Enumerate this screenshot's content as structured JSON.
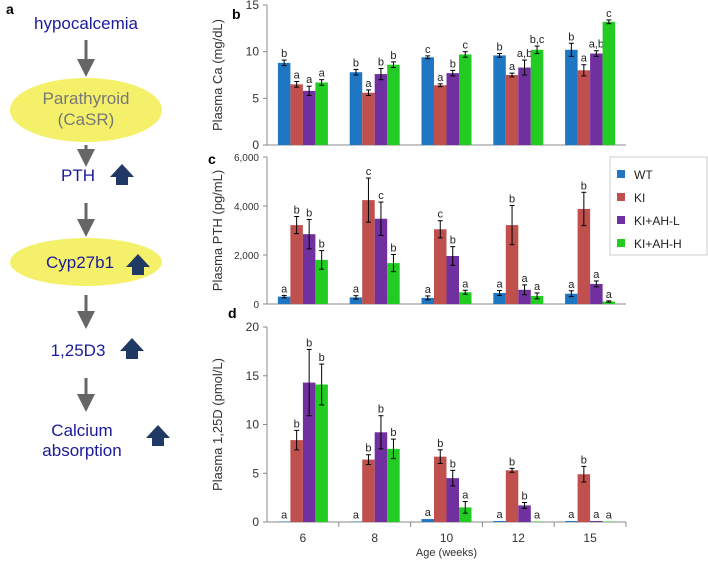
{
  "panel_labels": {
    "a": "a",
    "b": "b",
    "c": "c",
    "d": "d"
  },
  "diagram": {
    "nodes": [
      "hypocalcemia",
      "Parathyroid",
      "(CaSR)",
      "PTH",
      "Cyp27b1",
      "1,25D3",
      "Calcium",
      "absorption"
    ],
    "text_color": "#1a1a9c",
    "ellipse_color": "#f5f06a",
    "up_arrow_color": "#1f3864",
    "arrow_color": "#666666"
  },
  "legend": [
    "WT",
    "KI",
    "KI+AH-L",
    "KI+AH-H"
  ],
  "colors": [
    "#1f77c4",
    "#c0504d",
    "#7030a0",
    "#22cc22"
  ],
  "chart_data": [
    {
      "type": "bar",
      "panel": "b",
      "ylabel": "Plasma Ca (mg/dL)",
      "ylim": [
        0,
        15
      ],
      "yticks": [
        "0",
        "5",
        "10",
        "15"
      ],
      "ytick_values": [
        0,
        5,
        10,
        15
      ],
      "categories": [
        "6",
        "8",
        "10",
        "12",
        "15"
      ],
      "series": [
        {
          "name": "WT",
          "values": [
            8.8,
            7.8,
            9.4,
            9.6,
            10.2
          ],
          "errors": [
            0.3,
            0.3,
            0.15,
            0.2,
            0.7
          ],
          "letters": [
            "b",
            "b",
            "c",
            "b",
            "b"
          ]
        },
        {
          "name": "KI",
          "values": [
            6.5,
            5.6,
            6.4,
            7.5,
            8.0
          ],
          "errors": [
            0.3,
            0.3,
            0.15,
            0.2,
            0.6
          ],
          "letters": [
            "a",
            "a",
            "a",
            "a",
            "a"
          ]
        },
        {
          "name": "KI+AH-L",
          "values": [
            5.8,
            7.6,
            7.7,
            8.3,
            9.8
          ],
          "errors": [
            0.5,
            0.6,
            0.3,
            0.8,
            0.3
          ],
          "letters": [
            "a",
            "b",
            "b",
            "a,b",
            "a,b"
          ]
        },
        {
          "name": "KI+AH-H",
          "values": [
            6.7,
            8.6,
            9.7,
            10.2,
            13.2
          ],
          "errors": [
            0.3,
            0.3,
            0.3,
            0.4,
            0.2
          ],
          "letters": [
            "a",
            "b",
            "c",
            "b,c",
            "c"
          ]
        }
      ]
    },
    {
      "type": "bar",
      "panel": "c",
      "ylabel": "Plasma  PTH (pg/mL)",
      "ylim": [
        0,
        6000
      ],
      "yticks": [
        "0",
        "2,000",
        "4,000",
        "6,000"
      ],
      "ytick_values": [
        0,
        2000,
        4000,
        6000
      ],
      "categories": [
        "6",
        "8",
        "10",
        "12",
        "15"
      ],
      "series": [
        {
          "name": "WT",
          "values": [
            300,
            270,
            250,
            450,
            420
          ],
          "errors": [
            50,
            70,
            80,
            100,
            120
          ],
          "letters": [
            "a",
            "a",
            "a",
            "a",
            "a"
          ]
        },
        {
          "name": "KI",
          "values": [
            3220,
            4240,
            3050,
            3220,
            3880
          ],
          "errors": [
            350,
            900,
            350,
            800,
            680
          ],
          "letters": [
            "b",
            "c",
            "c",
            "b",
            "b"
          ]
        },
        {
          "name": "KI+AH-L",
          "values": [
            2850,
            3480,
            1960,
            580,
            820
          ],
          "errors": [
            600,
            680,
            380,
            200,
            120
          ],
          "letters": [
            "b",
            "c",
            "b",
            "a",
            "a"
          ]
        },
        {
          "name": "KI+AH-H",
          "values": [
            1800,
            1670,
            480,
            330,
            100
          ],
          "errors": [
            380,
            350,
            80,
            120,
            30
          ],
          "letters": [
            "b",
            "b",
            "a",
            "a",
            "a"
          ]
        }
      ]
    },
    {
      "type": "bar",
      "panel": "d",
      "ylabel": "Plasma 1,25D  (pmol/L)",
      "xlabel": "Age (weeks)",
      "ylim": [
        0,
        20
      ],
      "yticks": [
        "0",
        "5",
        "10",
        "15",
        "20"
      ],
      "ytick_values": [
        0,
        5,
        10,
        15,
        20
      ],
      "categories": [
        "6",
        "8",
        "10",
        "12",
        "15"
      ],
      "series": [
        {
          "name": "WT",
          "values": [
            0.05,
            0.05,
            0.3,
            0.1,
            0.1
          ],
          "errors": [
            0,
            0,
            0,
            0,
            0
          ],
          "letters": [
            "a",
            "a",
            "a",
            "a",
            "a"
          ]
        },
        {
          "name": "KI",
          "values": [
            8.4,
            6.4,
            6.7,
            5.3,
            4.9
          ],
          "errors": [
            1.0,
            0.5,
            0.7,
            0.2,
            0.8
          ],
          "letters": [
            "b",
            "b",
            "b",
            "b",
            "b"
          ]
        },
        {
          "name": "KI+AH-L",
          "values": [
            14.3,
            9.2,
            4.5,
            1.7,
            0.1
          ],
          "errors": [
            3.4,
            1.7,
            0.8,
            0.3,
            0
          ],
          "letters": [
            "b",
            "b",
            "b",
            "b",
            "a"
          ]
        },
        {
          "name": "KI+AH-H",
          "values": [
            14.1,
            7.5,
            1.5,
            0.05,
            0.05
          ],
          "errors": [
            2.1,
            1.0,
            0.6,
            0,
            0
          ],
          "letters": [
            "b",
            "b",
            "a",
            "a",
            "a"
          ]
        }
      ]
    }
  ]
}
